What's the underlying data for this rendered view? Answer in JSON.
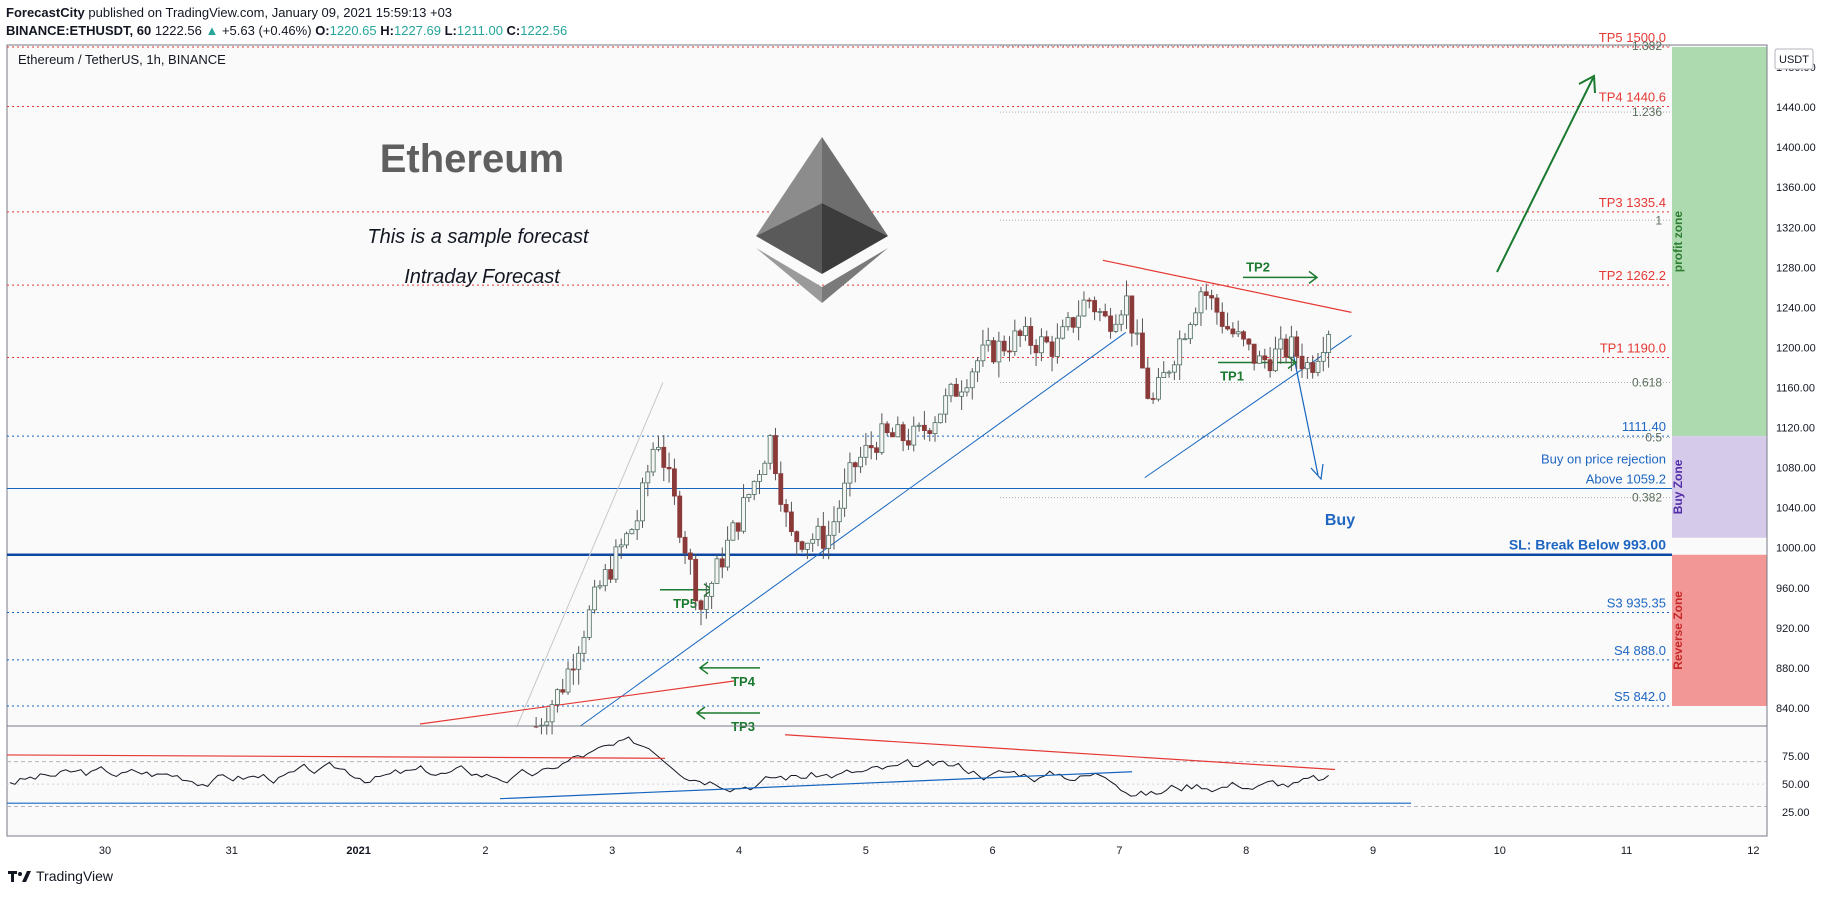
{
  "header": {
    "publisher": "ForecastCity",
    "published_text": "published on TradingView.com, January 09, 2021 15:59:13 +03",
    "symbol": "BINANCE:ETHUSDT, 60",
    "last": "1222.56",
    "change": "+5.63 (+0.46%)",
    "o_label": "O:",
    "o": "1220.65",
    "h_label": "H:",
    "h": "1227.69",
    "l_label": "L:",
    "l": "1211.00",
    "c_label": "C:",
    "c": "1222.56"
  },
  "pane_title": "Ethereum / TetherUS, 1h, BINANCE",
  "overlay": {
    "headline": "Ethereum",
    "line1": "This is a sample forecast",
    "line2": "Intraday Forecast",
    "buy_label": "Buy"
  },
  "currency": "USDT",
  "footer": {
    "brand": "TradingView"
  },
  "colors": {
    "up": "#26a69a",
    "down": "#ef5350",
    "profit": "#a5d6a7",
    "buy": "#d1c4e9",
    "reverse": "#f28b8b",
    "blue": "#1565c0",
    "red": "#e53935",
    "green": "#1b7a2f"
  },
  "chart_data": {
    "type": "candlestick",
    "title": "Ethereum / TetherUS, 1h, BINANCE",
    "y_axis": {
      "ticks": [
        840,
        880,
        920,
        960,
        1000,
        1040,
        1080,
        1120,
        1160,
        1200,
        1240,
        1280,
        1320,
        1360,
        1400,
        1440,
        1480
      ],
      "range": [
        822,
        1502
      ],
      "unit": "USDT"
    },
    "x_axis": {
      "ticks": [
        "30",
        "31",
        "2021",
        "2",
        "3",
        "4",
        "5",
        "6",
        "7",
        "8",
        "9",
        "10",
        "11",
        "12"
      ]
    },
    "levels": [
      {
        "label": "TP5 1500.0",
        "value": 1500.0,
        "style": "dotted-red"
      },
      {
        "label": "TP4 1440.6",
        "value": 1440.6,
        "style": "dotted-red"
      },
      {
        "label": "TP3 1335.4",
        "value": 1335.4,
        "style": "dotted-red"
      },
      {
        "label": "TP2 1262.2",
        "value": 1262.2,
        "style": "dotted-red"
      },
      {
        "label": "TP1 1190.0",
        "value": 1190.0,
        "style": "dotted-red"
      },
      {
        "label": "1111.40",
        "value": 1111.4,
        "style": "dotted-blue"
      },
      {
        "label": "Above 1059.2",
        "value": 1059.2,
        "style": "solid-blue",
        "note": "Buy on price rejection"
      },
      {
        "label": "SL: Break Below 993.00",
        "value": 993.0,
        "style": "thick-blue"
      },
      {
        "label": "S3 935.35",
        "value": 935.35,
        "style": "dotted-blue"
      },
      {
        "label": "S4 888.0",
        "value": 888.0,
        "style": "dotted-blue"
      },
      {
        "label": "S5 842.0",
        "value": 842.0,
        "style": "dotted-blue"
      }
    ],
    "fib_levels": [
      {
        "label": "1.382",
        "value": 1501
      },
      {
        "label": "1.236",
        "value": 1435
      },
      {
        "label": "1",
        "value": 1327
      },
      {
        "label": "0.618",
        "value": 1165
      },
      {
        "label": "0.5",
        "value": 1110
      },
      {
        "label": "0.382",
        "value": 1050
      }
    ],
    "zones": [
      {
        "label": "profit zone",
        "from": 1111.4,
        "to": 1500
      },
      {
        "label": "Buy Zone",
        "from": 1010,
        "to": 1111.4
      },
      {
        "label": "Reverse Zone",
        "from": 842,
        "to": 993
      }
    ],
    "target_labels": [
      {
        "label": "TP5",
        "value": 958
      },
      {
        "label": "TP4",
        "value": 880
      },
      {
        "label": "TP3",
        "value": 835
      },
      {
        "label": "TP2",
        "value": 1270
      },
      {
        "label": "TP1",
        "value": 1185
      }
    ],
    "rsi": {
      "ticks": [
        25.0,
        50.0,
        75.0
      ],
      "dashed": [
        30,
        70
      ],
      "range": [
        18,
        100
      ]
    }
  }
}
